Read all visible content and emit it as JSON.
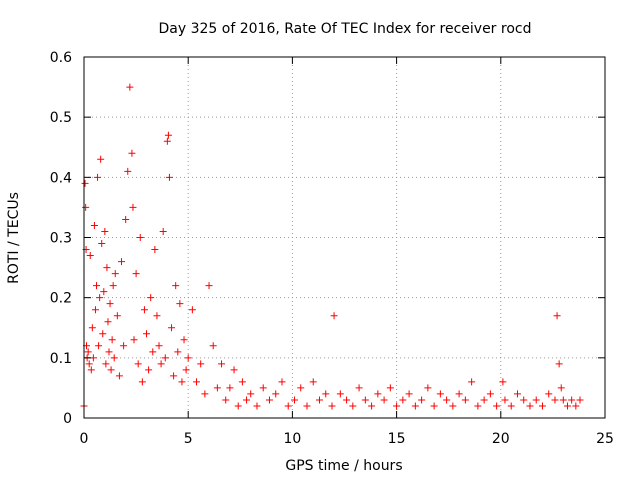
{
  "chart_data": {
    "type": "scatter",
    "title": "Day 325 of 2016, Rate Of TEC Index for receiver rocd",
    "xlabel": "GPS time / hours",
    "ylabel": "ROTI / TECUs",
    "xlim": [
      0,
      25
    ],
    "ylim": [
      0,
      0.6
    ],
    "xticks": [
      0,
      5,
      10,
      15,
      20,
      25
    ],
    "xtick_labels": [
      "0",
      "5",
      "10",
      "15",
      "20",
      "25"
    ],
    "yticks": [
      0,
      0.1,
      0.2,
      0.3,
      0.4,
      0.5,
      0.6
    ],
    "ytick_labels": [
      "0",
      "0.1",
      "0.2",
      "0.3",
      "0.4",
      "0.5",
      "0.6"
    ],
    "grid": true,
    "grid_style": "dotted",
    "marker": "+",
    "series": [
      {
        "color": "#ff0000",
        "x": [
          0.0,
          0.05,
          0.08,
          0.1,
          0.12,
          0.15,
          0.2,
          0.25,
          0.3,
          0.35,
          0.4,
          0.45,
          0.5,
          0.55,
          0.6,
          0.65,
          0.7,
          0.75,
          0.8,
          0.85,
          0.9,
          0.95,
          1.0,
          1.05,
          1.1,
          1.15,
          1.2,
          1.25,
          1.3,
          1.35,
          1.4,
          1.45,
          1.5,
          1.6,
          1.7,
          1.8,
          1.9,
          2.0,
          2.1,
          2.2,
          2.3,
          2.35,
          2.4,
          2.5,
          2.6,
          2.7,
          2.8,
          2.9,
          3.0,
          3.1,
          3.2,
          3.3,
          3.4,
          3.5,
          3.6,
          3.7,
          3.8,
          3.9,
          4.0,
          4.05,
          4.1,
          4.2,
          4.3,
          4.4,
          4.5,
          4.6,
          4.7,
          4.8,
          4.9,
          5.0,
          5.2,
          5.4,
          5.6,
          5.8,
          6.0,
          6.2,
          6.4,
          6.6,
          6.8,
          7.0,
          7.2,
          7.4,
          7.6,
          7.8,
          8.0,
          8.3,
          8.6,
          8.9,
          9.2,
          9.5,
          9.8,
          10.1,
          10.4,
          10.7,
          11.0,
          11.3,
          11.6,
          11.9,
          12.0,
          12.3,
          12.6,
          12.9,
          13.2,
          13.5,
          13.8,
          14.1,
          14.4,
          14.7,
          15.0,
          15.3,
          15.6,
          15.9,
          16.2,
          16.5,
          16.8,
          17.1,
          17.4,
          17.7,
          18.0,
          18.3,
          18.6,
          18.9,
          19.2,
          19.5,
          19.8,
          20.1,
          20.2,
          20.5,
          20.8,
          21.1,
          21.4,
          21.7,
          22.0,
          22.3,
          22.6,
          22.7,
          22.8,
          22.9,
          23.0,
          23.2,
          23.4,
          23.6,
          23.8
        ],
        "y": [
          0.02,
          0.39,
          0.35,
          0.28,
          0.12,
          0.1,
          0.11,
          0.09,
          0.27,
          0.08,
          0.15,
          0.1,
          0.32,
          0.18,
          0.22,
          0.4,
          0.12,
          0.2,
          0.43,
          0.29,
          0.14,
          0.21,
          0.31,
          0.09,
          0.25,
          0.16,
          0.11,
          0.19,
          0.08,
          0.13,
          0.22,
          0.1,
          0.24,
          0.17,
          0.07,
          0.26,
          0.12,
          0.33,
          0.41,
          0.55,
          0.44,
          0.35,
          0.13,
          0.24,
          0.09,
          0.3,
          0.06,
          0.18,
          0.14,
          0.08,
          0.2,
          0.11,
          0.28,
          0.17,
          0.12,
          0.09,
          0.31,
          0.1,
          0.46,
          0.47,
          0.4,
          0.15,
          0.07,
          0.22,
          0.11,
          0.19,
          0.06,
          0.13,
          0.08,
          0.1,
          0.18,
          0.06,
          0.09,
          0.04,
          0.22,
          0.12,
          0.05,
          0.09,
          0.03,
          0.05,
          0.08,
          0.02,
          0.06,
          0.03,
          0.04,
          0.02,
          0.05,
          0.03,
          0.04,
          0.06,
          0.02,
          0.03,
          0.05,
          0.02,
          0.06,
          0.03,
          0.04,
          0.02,
          0.17,
          0.04,
          0.03,
          0.02,
          0.05,
          0.03,
          0.02,
          0.04,
          0.03,
          0.05,
          0.02,
          0.03,
          0.04,
          0.02,
          0.03,
          0.05,
          0.02,
          0.04,
          0.03,
          0.02,
          0.04,
          0.03,
          0.06,
          0.02,
          0.03,
          0.04,
          0.02,
          0.06,
          0.03,
          0.02,
          0.04,
          0.03,
          0.02,
          0.03,
          0.02,
          0.04,
          0.03,
          0.17,
          0.09,
          0.05,
          0.03,
          0.02,
          0.03,
          0.02,
          0.03
        ]
      }
    ]
  }
}
